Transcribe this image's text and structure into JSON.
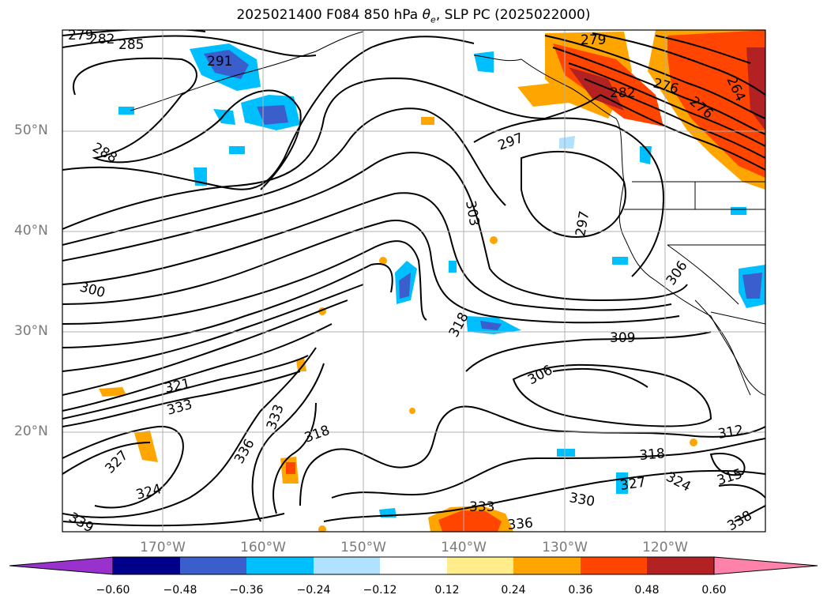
{
  "title": {
    "prefix": "2025021400 F084 850 hPa ",
    "theta": "θ",
    "sub": "e",
    "suffix": ", SLP PC (2025022000)"
  },
  "map": {
    "lat_labels": [
      "50°N",
      "40°N",
      "30°N",
      "20°N"
    ],
    "lon_labels": [
      "170°W",
      "160°W",
      "150°W",
      "140°W",
      "130°W",
      "120°W"
    ],
    "contour_labels": [
      "279",
      "282",
      "285",
      "291",
      "288",
      "300",
      "297",
      "303",
      "297",
      "306",
      "309",
      "306",
      "318",
      "321",
      "333",
      "327",
      "324",
      "336",
      "333",
      "318",
      "318",
      "312",
      "324",
      "315",
      "327",
      "330",
      "333",
      "336",
      "279",
      "276",
      "276",
      "264",
      "282",
      "339",
      "338"
    ]
  },
  "colorbar": {
    "ticks": [
      "−0.60",
      "−0.48",
      "−0.36",
      "−0.24",
      "−0.12",
      "0.12",
      "0.24",
      "0.36",
      "0.48",
      "0.60"
    ],
    "colors": [
      "#9932cc",
      "#00008b",
      "#3a5fcd",
      "#00bfff",
      "#b0e2ff",
      "#ffffff",
      "#ffec8b",
      "#ffa500",
      "#ff4500",
      "#b22222",
      "#ff82ab"
    ]
  }
}
